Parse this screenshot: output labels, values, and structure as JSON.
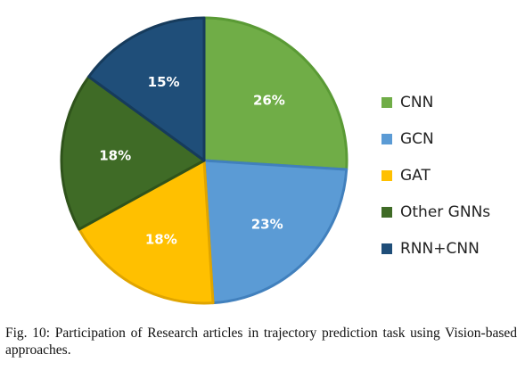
{
  "chart_data": {
    "type": "pie",
    "title": "",
    "series": [
      {
        "name": "CNN",
        "value": 26,
        "label": "26%",
        "color": "#70ad47",
        "edge": "#5a9a35"
      },
      {
        "name": "GCN",
        "value": 23,
        "label": "23%",
        "color": "#5b9bd5",
        "edge": "#4180bd"
      },
      {
        "name": "GAT",
        "value": 18,
        "label": "18%",
        "color": "#ffc000",
        "edge": "#e0a500"
      },
      {
        "name": "Other GNNs",
        "value": 18,
        "label": "18%",
        "color": "#3f6b26",
        "edge": "#2f531b"
      },
      {
        "name": "RNN+CNN",
        "value": 15,
        "label": "15%",
        "color": "#1f4e79",
        "edge": "#163b5c"
      }
    ],
    "start_angle_deg": 0,
    "direction": "clockwise",
    "legend_position": "right"
  },
  "caption": {
    "text": "Fig. 10: Participation of Research articles in trajectory prediction task using Vision-based approaches."
  }
}
